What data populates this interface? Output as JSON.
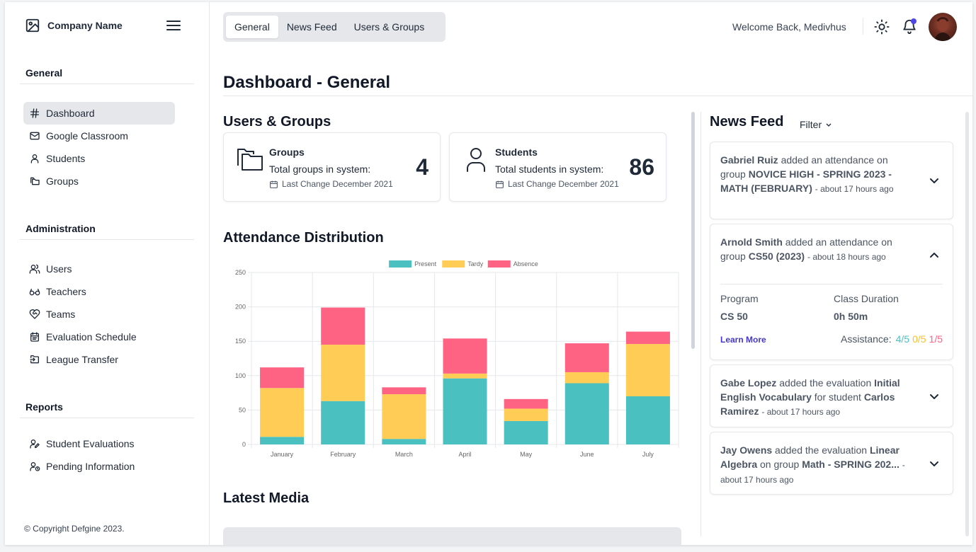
{
  "brand": {
    "name": "Company Name"
  },
  "sidebar": {
    "sections": [
      {
        "title": "General",
        "items": [
          {
            "label": "Dashboard",
            "icon": "hash-icon",
            "active": true
          },
          {
            "label": "Google Classroom",
            "icon": "mail-icon"
          },
          {
            "label": "Students",
            "icon": "user-icon"
          },
          {
            "label": "Groups",
            "icon": "folders-icon"
          }
        ]
      },
      {
        "title": "Administration",
        "items": [
          {
            "label": "Users",
            "icon": "users-icon"
          },
          {
            "label": "Teachers",
            "icon": "glasses-icon"
          },
          {
            "label": "Teams",
            "icon": "heart-handshake-icon"
          },
          {
            "label": "Evaluation Schedule",
            "icon": "calendar-icon"
          },
          {
            "label": "League Transfer",
            "icon": "transfer-icon"
          }
        ]
      },
      {
        "title": "Reports",
        "items": [
          {
            "label": "Student Evaluations",
            "icon": "user-edit-icon"
          },
          {
            "label": "Pending Information",
            "icon": "user-clock-icon"
          }
        ]
      }
    ],
    "copyright": "© Copyright Defgine 2023."
  },
  "tabs": [
    {
      "label": "General",
      "active": true
    },
    {
      "label": "News Feed"
    },
    {
      "label": "Users & Groups"
    }
  ],
  "header": {
    "welcome": "Welcome Back, Medivhus"
  },
  "page": {
    "title": "Dashboard - General"
  },
  "users_groups": {
    "title": "Users & Groups",
    "cards": [
      {
        "title": "Groups",
        "desc": "Total groups in system:",
        "change": "Last Change December 2021",
        "value": "4",
        "icon": "folder-icon"
      },
      {
        "title": "Students",
        "desc": "Total students in system:",
        "change": "Last Change December 2021",
        "value": "86",
        "icon": "person-icon"
      }
    ]
  },
  "attendance": {
    "title": "Attendance Distribution"
  },
  "chart_data": {
    "type": "bar",
    "stacked": true,
    "categories": [
      "January",
      "February",
      "March",
      "April",
      "May",
      "June",
      "July"
    ],
    "series": [
      {
        "name": "Present",
        "color": "#4bc0c0",
        "values": [
          11,
          63,
          8,
          96,
          34,
          89,
          70
        ]
      },
      {
        "name": "Tardy",
        "color": "#ffcd56",
        "values": [
          71,
          82,
          65,
          7,
          18,
          16,
          76
        ]
      },
      {
        "name": "Absence",
        "color": "#ff6384",
        "values": [
          30,
          54,
          10,
          51,
          14,
          42,
          18
        ]
      }
    ],
    "ylim": [
      0,
      250
    ],
    "yticks": [
      0,
      50,
      100,
      150,
      200,
      250
    ],
    "legend": "top",
    "grid": true
  },
  "latest_media": {
    "title": "Latest Media"
  },
  "news": {
    "title": "News Feed",
    "filter": "Filter",
    "items": [
      {
        "actor": "Gabriel Ruiz",
        "action": "added an attendance on group",
        "target": "NOVICE HIGH - SPRING 2023 - MATH (FEBRUARY)",
        "time": "- about 17 hours ago"
      },
      {
        "actor": "Arnold Smith",
        "action": "added an attendance on group",
        "target": "CS50 (2023)",
        "time": "- about 18 hours ago",
        "program_label": "Program",
        "program": "CS 50",
        "duration_label": "Class Duration",
        "duration": "0h 50m",
        "learn_more": "Learn More",
        "assistance_label": "Assistance:",
        "assist_present": "4/5",
        "assist_tardy": "0/5",
        "assist_absent": "1/5"
      },
      {
        "actor": "Gabe Lopez",
        "action": "added the evaluation",
        "target": "Initial English Vocabulary",
        "mid": "for student",
        "target2": "Carlos Ramirez",
        "time": "- about 17 hours ago"
      },
      {
        "actor": "Jay Owens",
        "action": "added the evaluation",
        "target": "Linear Algebra",
        "mid": "on group",
        "target2": "Math - SPRING 202...",
        "time": "- about 17 hours ago"
      }
    ]
  }
}
